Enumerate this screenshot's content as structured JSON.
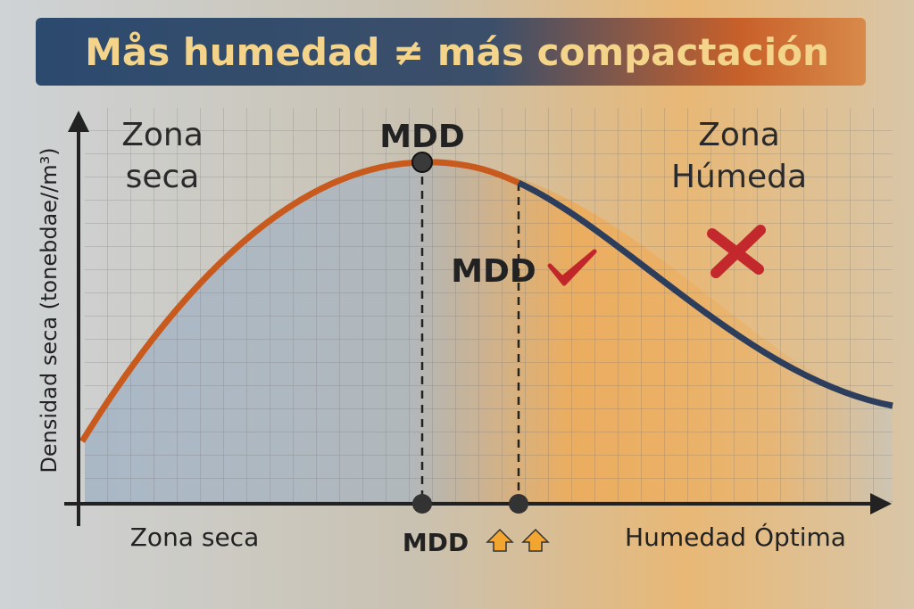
{
  "header": {
    "title": "Mås humedad ≠ más compactación"
  },
  "axes": {
    "y_label": "Densidad seca (tonebdae//m³)",
    "x_left": "Zona seca",
    "x_mid": "MDD",
    "x_right": "Humedad Óptima"
  },
  "zones": {
    "dry": [
      "Zona",
      "seca"
    ],
    "wet": [
      "Zona",
      "Húmeda"
    ]
  },
  "points": {
    "peak": "MDD",
    "middle": "MDD"
  }
}
